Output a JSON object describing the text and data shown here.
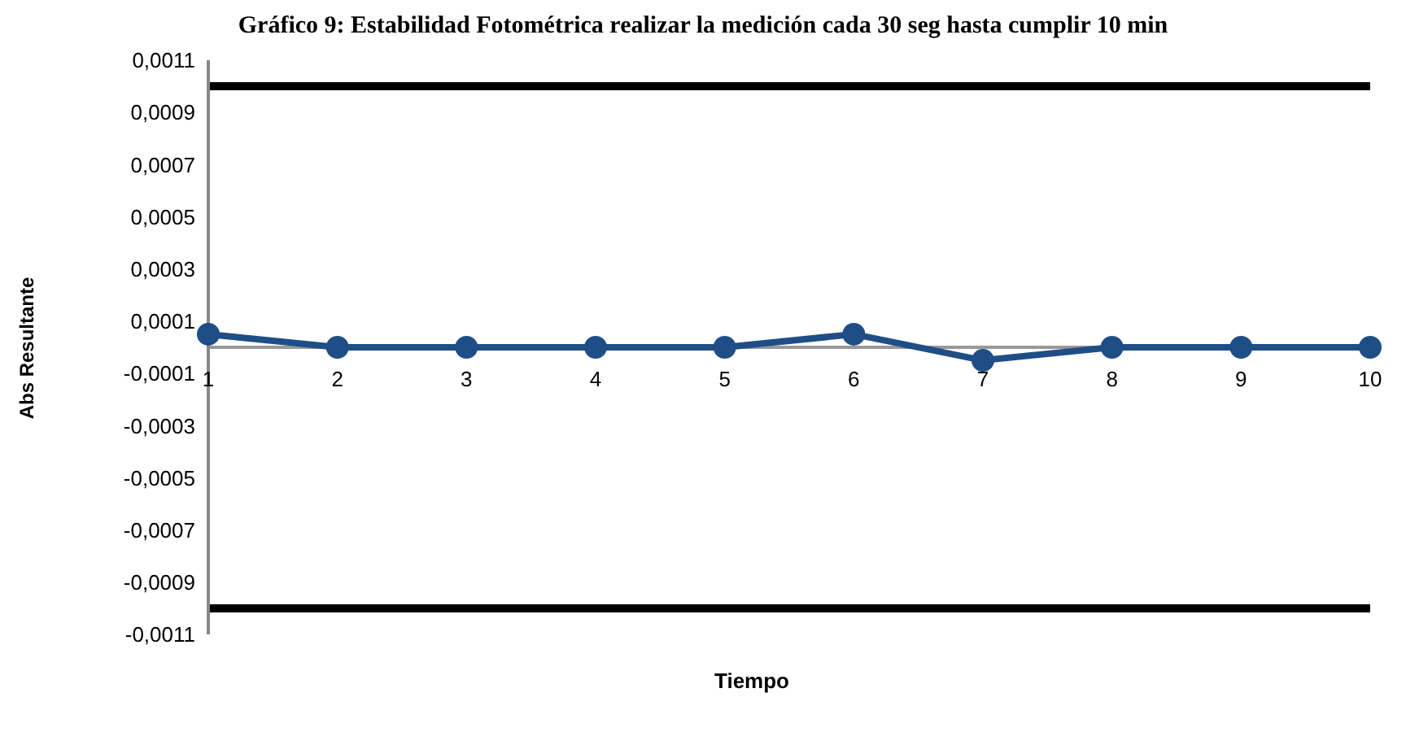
{
  "chart_data": {
    "type": "line",
    "title": "Gráfico 9: Estabilidad Fotométrica realizar la medición cada 30 seg hasta cumplir 10 min",
    "xlabel": "Tiempo",
    "ylabel": "Abs Resultante",
    "categories": [
      "1",
      "2",
      "3",
      "4",
      "5",
      "6",
      "7",
      "8",
      "9",
      "10"
    ],
    "series": [
      {
        "color": "#1f4e87",
        "values": [
          5e-05,
          0,
          0,
          0,
          0,
          5e-05,
          -5e-05,
          0,
          0,
          0
        ]
      }
    ],
    "ylim": [
      -0.0011,
      0.0011
    ],
    "yticks": [
      {
        "value": -0.0011,
        "label": "-0,0011"
      },
      {
        "value": -0.0009,
        "label": "-0,0009"
      },
      {
        "value": -0.0007,
        "label": "-0,0007"
      },
      {
        "value": -0.0005,
        "label": "-0,0005"
      },
      {
        "value": -0.0003,
        "label": "-0,0003"
      },
      {
        "value": -0.0001,
        "label": "-0,0001"
      },
      {
        "value": 0.0001,
        "label": "0,0001"
      },
      {
        "value": 0.0003,
        "label": "0,0003"
      },
      {
        "value": 0.0005,
        "label": "0,0005"
      },
      {
        "value": 0.0007,
        "label": "0,0007"
      },
      {
        "value": 0.0009,
        "label": "0,0009"
      },
      {
        "value": 0.0011,
        "label": "0,0011"
      }
    ],
    "ref_lines": [
      {
        "axis": "y",
        "value": 0.001,
        "color": "#000000"
      },
      {
        "axis": "y",
        "value": -0.001,
        "color": "#000000"
      }
    ],
    "grid": false,
    "marker": "circle",
    "line_style": "solid"
  }
}
